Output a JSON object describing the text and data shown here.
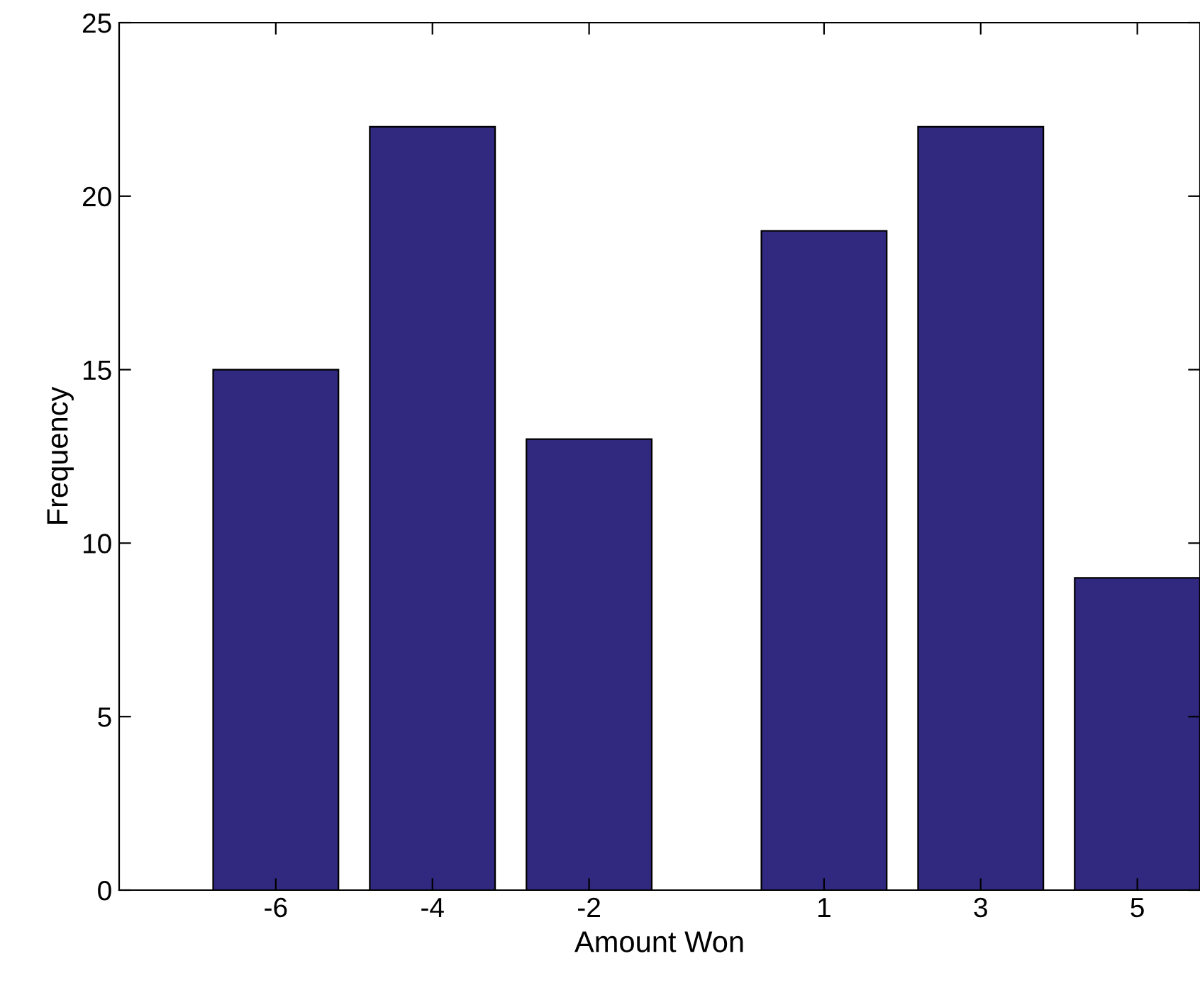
{
  "chart_data": {
    "type": "bar",
    "xlabel": "Amount Won",
    "ylabel": "Frequency",
    "x": [
      -6,
      -4,
      -2,
      1,
      3,
      5
    ],
    "series": [
      {
        "color": "#31287f",
        "values": [
          15,
          22,
          13,
          19,
          22,
          9
        ]
      }
    ],
    "xlim": [
      -8,
      5.8
    ],
    "xticks": [
      -6,
      -4,
      -2,
      1,
      3,
      5
    ],
    "ylim": [
      0,
      25
    ],
    "yticks": [
      0,
      5,
      10,
      15,
      20,
      25
    ],
    "grid": false,
    "legend": false
  }
}
